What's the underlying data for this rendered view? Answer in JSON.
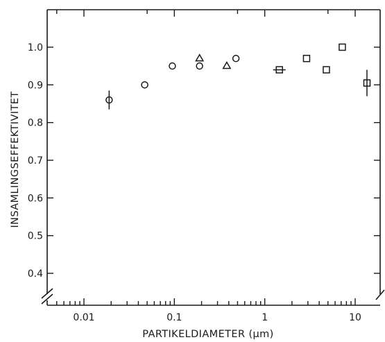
{
  "chart_data": {
    "type": "scatter",
    "title": "",
    "xlabel": "PARTIKELDIAMETER (μm)",
    "ylabel": "INSAMLINGSEFFEKTIVITET",
    "x_scale": "log",
    "xlim": [
      0.005,
      15
    ],
    "ylim": [
      0.35,
      1.1
    ],
    "x_ticks": [
      {
        "value": 0.01,
        "label": "0.01"
      },
      {
        "value": 0.1,
        "label": "0.1"
      },
      {
        "value": 1,
        "label": "1"
      },
      {
        "value": 10,
        "label": "10"
      }
    ],
    "y_ticks": [
      {
        "value": 0.4,
        "label": "0.4"
      },
      {
        "value": 0.5,
        "label": "0.5"
      },
      {
        "value": 0.6,
        "label": "0.6"
      },
      {
        "value": 0.7,
        "label": "0.7"
      },
      {
        "value": 0.8,
        "label": "0.8"
      },
      {
        "value": 0.9,
        "label": "0.9"
      },
      {
        "value": 1.0,
        "label": "1.0"
      }
    ],
    "grid": false,
    "legend": "none",
    "series": [
      {
        "marker": "circle",
        "points": [
          {
            "x": 0.019,
            "y": 0.86,
            "err": 0.025
          },
          {
            "x": 0.047,
            "y": 0.9
          },
          {
            "x": 0.095,
            "y": 0.95
          },
          {
            "x": 0.19,
            "y": 0.95
          },
          {
            "x": 0.48,
            "y": 0.97
          }
        ]
      },
      {
        "marker": "triangle",
        "points": [
          {
            "x": 0.19,
            "y": 0.97
          },
          {
            "x": 0.38,
            "y": 0.95
          }
        ]
      },
      {
        "marker": "square",
        "points": [
          {
            "x": 1.45,
            "y": 0.94,
            "xerr": true
          },
          {
            "x": 2.9,
            "y": 0.97
          },
          {
            "x": 4.8,
            "y": 0.94
          },
          {
            "x": 7.2,
            "y": 1.0
          },
          {
            "x": 13.5,
            "y": 0.905,
            "err": 0.035
          }
        ]
      }
    ]
  }
}
